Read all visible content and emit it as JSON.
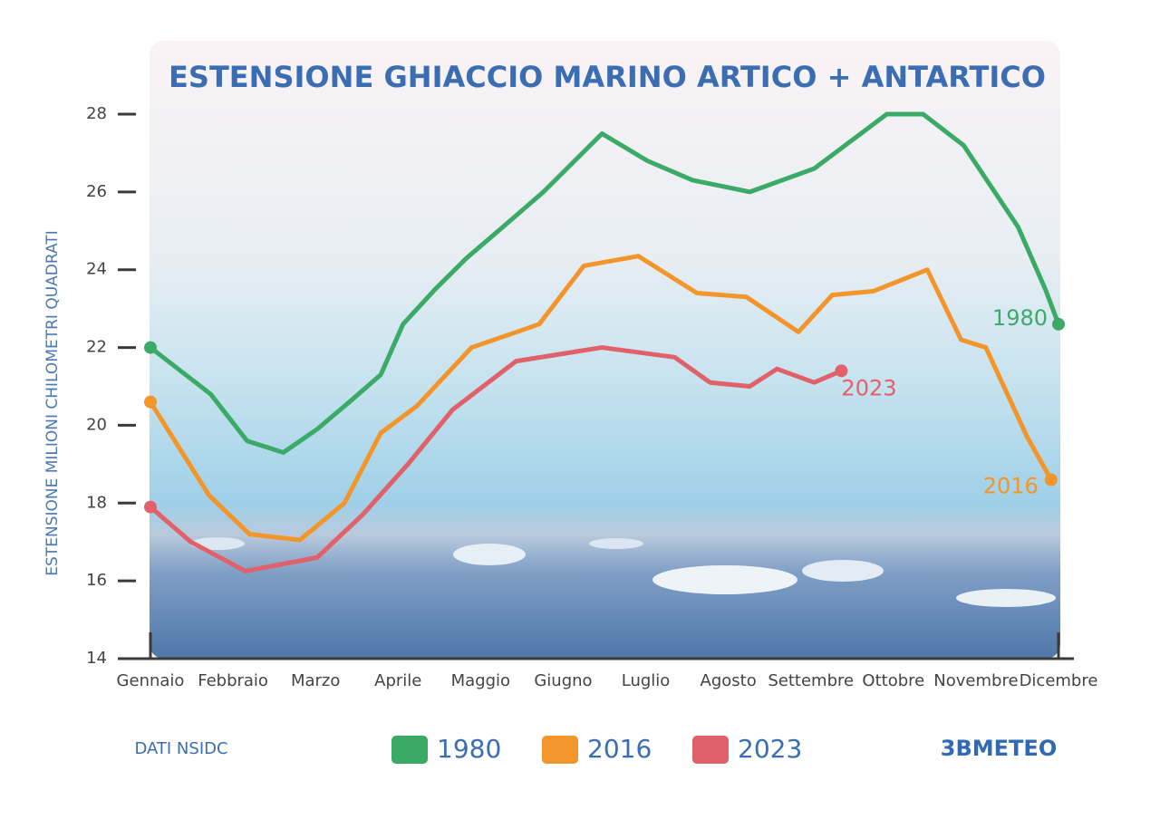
{
  "chart_data": {
    "type": "line",
    "title": "ESTENSIONE GHIACCIO MARINO ARTICO + ANTARTICO",
    "y_label": "ESTENSIONE MILIONI CHILOMETRI QUADRATI",
    "source": "DATI NSIDC",
    "brand": "3BMETEO",
    "xlim": [
      1,
      12
    ],
    "xticks": [
      {
        "value": 1,
        "label": "Gennaio"
      },
      {
        "value": 2,
        "label": "Febbraio"
      },
      {
        "value": 3,
        "label": "Marzo"
      },
      {
        "value": 4,
        "label": "Aprile"
      },
      {
        "value": 5,
        "label": "Maggio"
      },
      {
        "value": 6,
        "label": "Giugno"
      },
      {
        "value": 7,
        "label": "Luglio"
      },
      {
        "value": 8,
        "label": "Agosto"
      },
      {
        "value": 9,
        "label": "Settembre"
      },
      {
        "value": 10,
        "label": "Ottobre"
      },
      {
        "value": 11,
        "label": "Novembre"
      },
      {
        "value": 12,
        "label": "Dicembre"
      }
    ],
    "ylim": [
      14,
      28
    ],
    "yticks": [
      14,
      16,
      18,
      20,
      22,
      24,
      26,
      28
    ],
    "series": [
      {
        "name": "1980",
        "color": "#3aaa66",
        "x": [
          1.0,
          1.73,
          2.17,
          2.61,
          3.02,
          3.41,
          3.79,
          4.06,
          4.45,
          4.83,
          5.27,
          5.76,
          6.47,
          7.02,
          7.57,
          8.26,
          9.04,
          9.92,
          10.36,
          10.85,
          11.51,
          11.84,
          12.0
        ],
        "values": [
          22.0,
          20.8,
          19.6,
          19.3,
          19.9,
          20.6,
          21.3,
          22.6,
          23.5,
          24.3,
          25.1,
          26.0,
          27.5,
          26.8,
          26.3,
          26.0,
          26.6,
          28.0,
          28.0,
          27.2,
          25.1,
          23.5,
          22.6
        ]
      },
      {
        "name": "2016",
        "color": "#f3952a",
        "x": [
          1.0,
          1.71,
          2.2,
          2.81,
          3.35,
          3.79,
          4.23,
          4.89,
          5.71,
          6.25,
          6.91,
          7.62,
          8.22,
          8.5,
          8.85,
          9.26,
          9.76,
          10.41,
          10.82,
          11.12,
          11.62,
          11.91
        ],
        "values": [
          20.6,
          18.2,
          17.2,
          17.05,
          18.0,
          19.8,
          20.5,
          22.0,
          22.6,
          24.1,
          24.35,
          23.4,
          23.3,
          22.9,
          22.4,
          23.35,
          23.45,
          24.0,
          22.2,
          22.0,
          19.7,
          18.6
        ]
      },
      {
        "name": "2023",
        "color": "#e0616a",
        "x": [
          1.0,
          1.49,
          2.15,
          3.02,
          3.57,
          4.12,
          4.66,
          5.43,
          6.47,
          7.35,
          7.78,
          8.26,
          8.59,
          9.04,
          9.37
        ],
        "values": [
          17.9,
          17.0,
          16.25,
          16.6,
          17.7,
          19.0,
          20.4,
          21.65,
          22.0,
          21.75,
          21.1,
          21.0,
          21.45,
          21.1,
          21.4
        ]
      }
    ]
  }
}
